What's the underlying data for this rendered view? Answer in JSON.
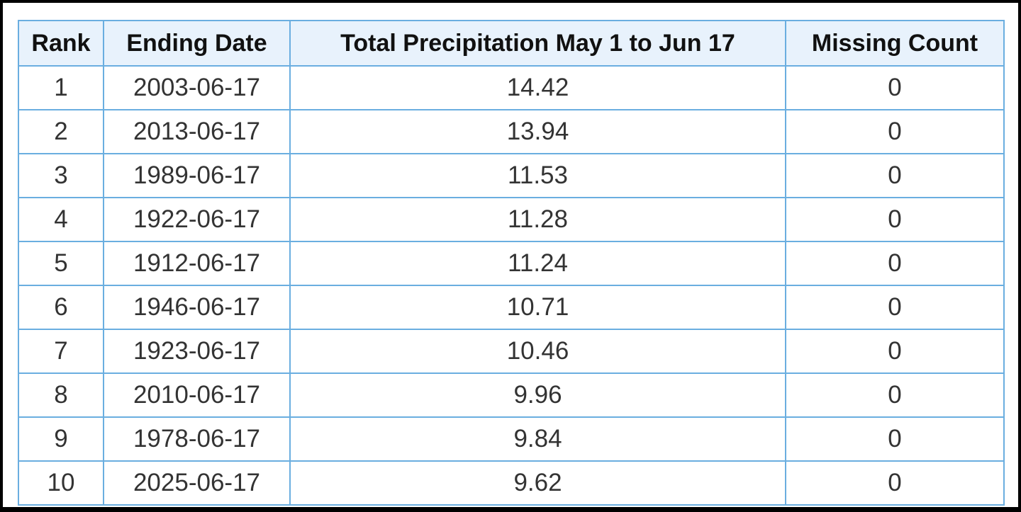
{
  "table": {
    "header": [
      "Rank",
      "Ending Date",
      "Total Precipitation May 1 to Jun 17",
      "Missing Count"
    ],
    "rows": [
      [
        1,
        "2003-06-17",
        14.42,
        0
      ],
      [
        2,
        "2013-06-17",
        13.94,
        0
      ],
      [
        3,
        "1989-06-17",
        11.53,
        0
      ],
      [
        4,
        "1922-06-17",
        11.28,
        0
      ],
      [
        5,
        "1912-06-17",
        11.24,
        0
      ],
      [
        6,
        "1946-06-17",
        10.71,
        0
      ],
      [
        7,
        "1923-06-17",
        10.46,
        0
      ],
      [
        8,
        "2010-06-17",
        9.96,
        0
      ],
      [
        9,
        "1978-06-17",
        9.84,
        0
      ],
      [
        10,
        "2025-06-17",
        9.62,
        0
      ]
    ]
  }
}
